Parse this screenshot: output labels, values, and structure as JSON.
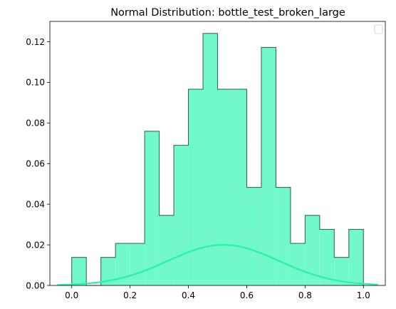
{
  "chart_data": {
    "type": "bar",
    "title": "Normal Distribution: bottle_test_broken_large",
    "xlabel": "",
    "ylabel": "",
    "xlim": [
      -0.075,
      1.075
    ],
    "ylim": [
      0,
      0.13
    ],
    "xticks": [
      0.0,
      0.2,
      0.4,
      0.6,
      0.8,
      1.0
    ],
    "xtick_labels": [
      "0.0",
      "0.2",
      "0.4",
      "0.6",
      "0.8",
      "1.0"
    ],
    "yticks": [
      0.0,
      0.02,
      0.04,
      0.06,
      0.08,
      0.1,
      0.12
    ],
    "ytick_labels": [
      "0.00",
      "0.02",
      "0.04",
      "0.06",
      "0.08",
      "0.10",
      "0.12"
    ],
    "grid": false,
    "legend": "top-right (empty)",
    "histogram": {
      "bin_edges": [
        0.0,
        0.05,
        0.1,
        0.15,
        0.2,
        0.25,
        0.3,
        0.35,
        0.4,
        0.45,
        0.5,
        0.55,
        0.6,
        0.65,
        0.7,
        0.75,
        0.8,
        0.85,
        0.9,
        0.95,
        1.0
      ],
      "values": [
        0.0138,
        0.0,
        0.0138,
        0.0207,
        0.0207,
        0.0759,
        0.0345,
        0.069,
        0.0966,
        0.1241,
        0.0966,
        0.0966,
        0.0483,
        0.1172,
        0.0483,
        0.0207,
        0.0345,
        0.0276,
        0.0138,
        0.0276
      ],
      "fill": "#72f9c9",
      "edge": "#3d6b5a"
    },
    "curve": {
      "type": "line",
      "x_range": [
        -0.05,
        1.05
      ],
      "mean": 0.52,
      "std": 0.19,
      "peak": 0.02,
      "color": "#2af2a6"
    }
  }
}
